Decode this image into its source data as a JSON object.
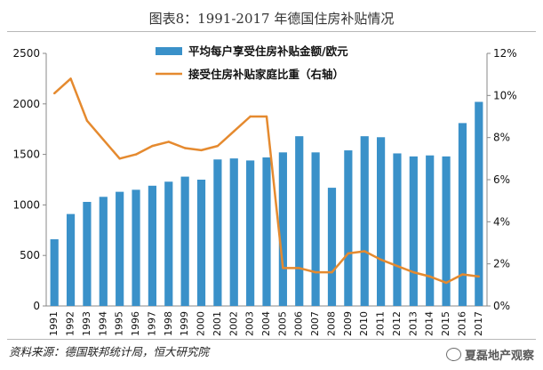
{
  "figure_title": "图表8：1991-2017 年德国住房补贴情况",
  "source": "资料来源：德国联邦统计局，恒大研究院",
  "watermark": "夏磊地产观察",
  "colors": {
    "bar": "#3a91c9",
    "line": "#e58a2f",
    "axis": "#888888",
    "text": "#111111"
  },
  "chart_data": {
    "type": "bar",
    "title": "",
    "xlabel": "",
    "categories": [
      "1991",
      "1992",
      "1993",
      "1994",
      "1995",
      "1996",
      "1997",
      "1998",
      "1999",
      "2000",
      "2001",
      "2002",
      "2003",
      "2004",
      "2005",
      "2006",
      "2007",
      "2008",
      "2009",
      "2010",
      "2011",
      "2012",
      "2013",
      "2014",
      "2015",
      "2016",
      "2017"
    ],
    "series": [
      {
        "name": "平均每户享受住房补贴金额/欧元",
        "type": "bar",
        "axis": "left",
        "values": [
          660,
          910,
          1030,
          1080,
          1130,
          1150,
          1190,
          1230,
          1280,
          1250,
          1450,
          1460,
          1440,
          1470,
          1520,
          1680,
          1520,
          1170,
          1540,
          1680,
          1670,
          1510,
          1480,
          1490,
          1480,
          1810,
          2020
        ]
      },
      {
        "name": "接受住房补贴家庭比重（右轴）",
        "type": "line",
        "axis": "right",
        "unit": "%",
        "values": [
          10.1,
          10.8,
          8.8,
          7.9,
          7.0,
          7.2,
          7.6,
          7.8,
          7.5,
          7.4,
          7.6,
          8.3,
          9.0,
          9.0,
          1.8,
          1.8,
          1.6,
          1.6,
          2.5,
          2.6,
          2.2,
          1.9,
          1.6,
          1.4,
          1.1,
          1.5,
          1.4
        ]
      }
    ],
    "ylim": [
      0,
      2500
    ],
    "y_ticks": [
      "0",
      "500",
      "1000",
      "1500",
      "2000",
      "2500"
    ],
    "y2lim": [
      0,
      12
    ],
    "y2_ticks": [
      "0%",
      "2%",
      "4%",
      "6%",
      "8%",
      "10%",
      "12%"
    ],
    "legend_position": "top-center",
    "grid": false
  }
}
